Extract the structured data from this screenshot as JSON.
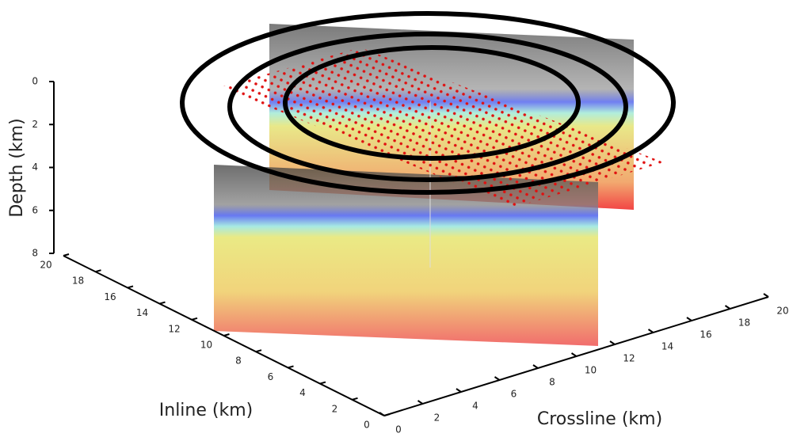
{
  "chart_data": {
    "type": "slice3d",
    "zlabel": "Depth (km)",
    "xlabel": "Inline (km)",
    "ylabel": "Crossline (km)",
    "zlim": [
      0,
      8
    ],
    "zticks": [
      0,
      2,
      4,
      6,
      8
    ],
    "xlim": [
      0,
      20
    ],
    "xticks": [
      0,
      2,
      4,
      6,
      8,
      10,
      12,
      14,
      16,
      18,
      20
    ],
    "ylim": [
      0,
      20
    ],
    "yticks": [
      0,
      2,
      4,
      6,
      8,
      10,
      12,
      14,
      16,
      18,
      20
    ]
  }
}
